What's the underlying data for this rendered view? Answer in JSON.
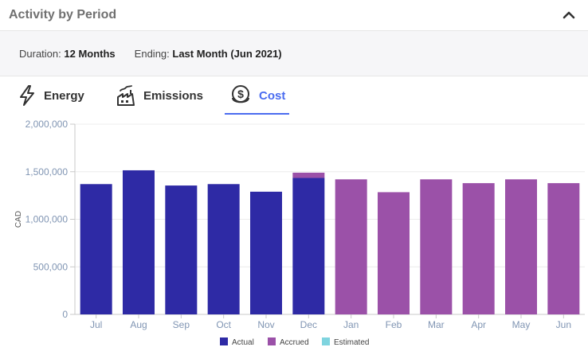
{
  "header": {
    "title": "Activity by Period"
  },
  "meta": {
    "duration_label": "Duration:",
    "duration_value": "12 Months",
    "ending_label": "Ending:",
    "ending_value": "Last Month (Jun 2021)"
  },
  "tabs": [
    {
      "label": "Energy",
      "icon": "lightning-bolt-icon",
      "active": false
    },
    {
      "label": "Emissions",
      "icon": "factory-icon",
      "active": false
    },
    {
      "label": "Cost",
      "icon": "coin-dollar-icon",
      "active": true
    }
  ],
  "colors": {
    "actual": "#2e2aa5",
    "accrued": "#9b51a8",
    "estimated": "#7fd4df",
    "active_tab": "#4a6cf0",
    "axis_text": "#8095b3"
  },
  "chart_data": {
    "type": "bar",
    "stacked": true,
    "categories": [
      "Jul",
      "Aug",
      "Sep",
      "Oct",
      "Nov",
      "Dec",
      "Jan",
      "Feb",
      "Mar",
      "Apr",
      "May",
      "Jun"
    ],
    "series": [
      {
        "name": "Actual",
        "values": [
          1370000,
          1515000,
          1355000,
          1370000,
          1290000,
          1435000,
          0,
          0,
          0,
          0,
          0,
          0
        ]
      },
      {
        "name": "Accrued",
        "values": [
          0,
          0,
          0,
          0,
          0,
          55000,
          1420000,
          1285000,
          1420000,
          1380000,
          1420000,
          1380000
        ]
      },
      {
        "name": "Estimated",
        "values": [
          0,
          0,
          0,
          0,
          0,
          0,
          0,
          0,
          0,
          0,
          0,
          0
        ]
      }
    ],
    "ylabel": "CAD",
    "ylim": [
      0,
      2000000
    ],
    "yticks": [
      "0",
      "500,000",
      "1,000,000",
      "1,500,000",
      "2,000,000"
    ],
    "ytick_values": [
      0,
      500000,
      1000000,
      1500000,
      2000000
    ],
    "grid": true,
    "legend": "bottom-center"
  }
}
